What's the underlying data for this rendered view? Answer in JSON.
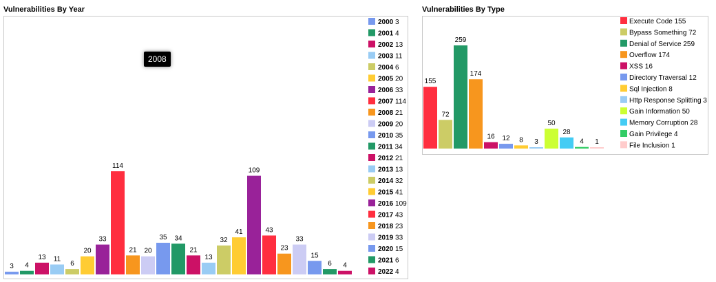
{
  "year_panel": {
    "title": "Vulnerabilities By Year",
    "tooltip": "2008"
  },
  "type_panel": {
    "title": "Vulnerabilities By Type"
  },
  "chart_data": [
    {
      "type": "bar",
      "title": "Vulnerabilities By Year",
      "categories": [
        "2000",
        "2001",
        "2002",
        "2003",
        "2004",
        "2005",
        "2006",
        "2007",
        "2008",
        "2009",
        "2010",
        "2011",
        "2012",
        "2013",
        "2014",
        "2015",
        "2016",
        "2017",
        "2018",
        "2019",
        "2020",
        "2021",
        "2022"
      ],
      "values": [
        3,
        4,
        13,
        11,
        6,
        20,
        33,
        114,
        21,
        20,
        35,
        34,
        21,
        13,
        32,
        41,
        109,
        43,
        23,
        33,
        15,
        6,
        4
      ],
      "colors": [
        "#7799ee",
        "#229966",
        "#cc1166",
        "#99ccf4",
        "#cccc66",
        "#ffcc33",
        "#992299",
        "#ff2e3f",
        "#f7961e",
        "#ccccf4",
        "#7799ee",
        "#229966",
        "#cc1166",
        "#99ccf4",
        "#cccc66",
        "#ffcc33",
        "#992299",
        "#ff2e3f",
        "#f7961e",
        "#ccccf4",
        "#7799ee",
        "#229966",
        "#cc1166"
      ],
      "ylim": [
        0,
        114
      ],
      "grid": false,
      "legend": "right"
    },
    {
      "type": "bar",
      "title": "Vulnerabilities By Type",
      "categories": [
        "Execute Code",
        "Bypass Something",
        "Denial of Service",
        "Overflow",
        "XSS",
        "Directory Traversal",
        "Sql Injection",
        "Http Response Splitting",
        "Gain Information",
        "Memory Corruption",
        "Gain Privilege",
        "File Inclusion"
      ],
      "values": [
        155,
        72,
        259,
        174,
        16,
        12,
        8,
        3,
        50,
        28,
        4,
        1
      ],
      "colors": [
        "#ff2e3f",
        "#cccc66",
        "#229966",
        "#f7961e",
        "#cc1166",
        "#7799ee",
        "#ffcc33",
        "#99ccf4",
        "#ccff33",
        "#44ccf4",
        "#33cc66",
        "#ffcccc"
      ],
      "ylim": [
        0,
        259
      ],
      "grid": false,
      "legend": "right"
    }
  ]
}
